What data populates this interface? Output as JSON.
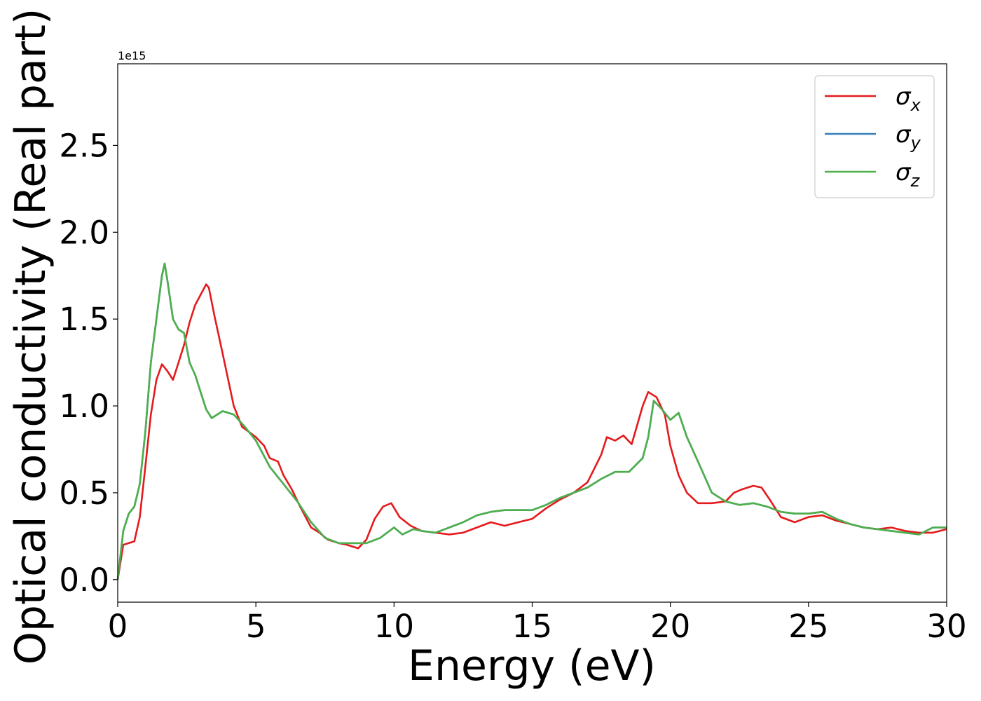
{
  "chart_data": {
    "type": "line",
    "xlabel": "Energy (eV)",
    "ylabel": "Optical conductivity (Real part)",
    "y_offset_label": "1e15",
    "xlim": [
      0,
      30
    ],
    "ylim": [
      -0.13,
      2.97
    ],
    "y_scale": 1000000000000000.0,
    "xticks": [
      0,
      5,
      10,
      15,
      20,
      25,
      30
    ],
    "xtick_labels": [
      "0",
      "5",
      "10",
      "15",
      "20",
      "25",
      "30"
    ],
    "yticks": [
      0.0,
      0.5,
      1.0,
      1.5,
      2.0,
      2.5
    ],
    "ytick_labels": [
      "0.0",
      "0.5",
      "1.0",
      "1.5",
      "2.0",
      "2.5"
    ],
    "grid": false,
    "legend_position": "top-right",
    "series": [
      {
        "name": "σx",
        "sub": "x",
        "color": "#e41a1c",
        "x": [
          0,
          0.2,
          0.4,
          0.6,
          0.8,
          1.0,
          1.2,
          1.4,
          1.6,
          1.8,
          2.0,
          2.2,
          2.4,
          2.6,
          2.8,
          3.0,
          3.2,
          3.3,
          3.5,
          3.8,
          4.0,
          4.2,
          4.5,
          5.0,
          5.3,
          5.5,
          5.8,
          6.0,
          6.3,
          6.6,
          7.0,
          7.3,
          7.6,
          8.0,
          8.3,
          8.7,
          9.0,
          9.3,
          9.6,
          9.9,
          10.2,
          10.6,
          11.0,
          11.5,
          12.0,
          12.5,
          13.0,
          13.5,
          14.0,
          14.5,
          15.0,
          15.5,
          16.0,
          16.5,
          17.0,
          17.5,
          17.7,
          18.0,
          18.3,
          18.6,
          19.0,
          19.2,
          19.5,
          19.8,
          20.0,
          20.3,
          20.6,
          21.0,
          21.5,
          22.0,
          22.3,
          22.6,
          23.0,
          23.3,
          23.6,
          24.0,
          24.5,
          25.0,
          25.5,
          26.0,
          26.5,
          27.0,
          27.5,
          28.0,
          28.5,
          29.0,
          29.5,
          30.0
        ],
        "y": [
          0.0,
          0.2,
          0.21,
          0.22,
          0.36,
          0.65,
          0.95,
          1.15,
          1.24,
          1.2,
          1.15,
          1.25,
          1.35,
          1.48,
          1.58,
          1.64,
          1.7,
          1.68,
          1.52,
          1.3,
          1.15,
          1.0,
          0.88,
          0.82,
          0.77,
          0.7,
          0.68,
          0.6,
          0.52,
          0.42,
          0.3,
          0.27,
          0.23,
          0.21,
          0.2,
          0.18,
          0.23,
          0.35,
          0.42,
          0.44,
          0.36,
          0.31,
          0.28,
          0.27,
          0.26,
          0.27,
          0.3,
          0.33,
          0.31,
          0.33,
          0.35,
          0.41,
          0.46,
          0.5,
          0.56,
          0.72,
          0.82,
          0.8,
          0.83,
          0.78,
          1.0,
          1.08,
          1.05,
          0.95,
          0.77,
          0.6,
          0.5,
          0.44,
          0.44,
          0.45,
          0.5,
          0.52,
          0.54,
          0.53,
          0.46,
          0.36,
          0.33,
          0.36,
          0.37,
          0.34,
          0.32,
          0.3,
          0.29,
          0.3,
          0.28,
          0.27,
          0.27,
          0.29
        ]
      },
      {
        "name": "σy",
        "sub": "y",
        "color": "#377eb8",
        "x": [
          0,
          0.2,
          0.4,
          0.6,
          0.8,
          1.0,
          1.2,
          1.4,
          1.6,
          1.7,
          1.8,
          2.0,
          2.2,
          2.4,
          2.6,
          2.8,
          3.0,
          3.2,
          3.4,
          3.6,
          3.8,
          4.2,
          4.6,
          5.0,
          5.5,
          6.0,
          6.5,
          7.0,
          7.5,
          8.0,
          8.5,
          9.0,
          9.5,
          10.0,
          10.3,
          10.7,
          11.0,
          11.5,
          12.0,
          12.5,
          13.0,
          13.5,
          14.0,
          14.5,
          15.0,
          15.5,
          16.0,
          16.5,
          17.0,
          17.5,
          18.0,
          18.5,
          19.0,
          19.2,
          19.4,
          19.7,
          20.0,
          20.3,
          20.6,
          21.0,
          21.5,
          22.0,
          22.5,
          23.0,
          23.5,
          24.0,
          24.5,
          25.0,
          25.5,
          26.0,
          26.5,
          27.0,
          27.5,
          28.0,
          28.5,
          29.0,
          29.5,
          30.0
        ],
        "y": [
          0.0,
          0.28,
          0.38,
          0.42,
          0.55,
          0.85,
          1.25,
          1.5,
          1.75,
          1.82,
          1.72,
          1.5,
          1.44,
          1.42,
          1.25,
          1.18,
          1.08,
          0.98,
          0.93,
          0.95,
          0.97,
          0.95,
          0.88,
          0.8,
          0.65,
          0.55,
          0.45,
          0.33,
          0.24,
          0.21,
          0.21,
          0.21,
          0.24,
          0.3,
          0.26,
          0.29,
          0.28,
          0.27,
          0.3,
          0.33,
          0.37,
          0.39,
          0.4,
          0.4,
          0.4,
          0.43,
          0.47,
          0.5,
          0.53,
          0.58,
          0.62,
          0.62,
          0.7,
          0.82,
          1.03,
          0.98,
          0.92,
          0.96,
          0.82,
          0.68,
          0.5,
          0.45,
          0.43,
          0.44,
          0.42,
          0.39,
          0.38,
          0.38,
          0.39,
          0.35,
          0.32,
          0.3,
          0.29,
          0.28,
          0.27,
          0.26,
          0.3,
          0.3
        ]
      },
      {
        "name": "σz",
        "sub": "z",
        "color": "#4daf4a",
        "x": [
          0,
          0.2,
          0.4,
          0.6,
          0.8,
          1.0,
          1.2,
          1.4,
          1.6,
          1.7,
          1.8,
          2.0,
          2.2,
          2.4,
          2.6,
          2.8,
          3.0,
          3.2,
          3.4,
          3.6,
          3.8,
          4.2,
          4.6,
          5.0,
          5.5,
          6.0,
          6.5,
          7.0,
          7.5,
          8.0,
          8.5,
          9.0,
          9.5,
          10.0,
          10.3,
          10.7,
          11.0,
          11.5,
          12.0,
          12.5,
          13.0,
          13.5,
          14.0,
          14.5,
          15.0,
          15.5,
          16.0,
          16.5,
          17.0,
          17.5,
          18.0,
          18.5,
          19.0,
          19.2,
          19.4,
          19.7,
          20.0,
          20.3,
          20.6,
          21.0,
          21.5,
          22.0,
          22.5,
          23.0,
          23.5,
          24.0,
          24.5,
          25.0,
          25.5,
          26.0,
          26.5,
          27.0,
          27.5,
          28.0,
          28.5,
          29.0,
          29.5,
          30.0
        ],
        "y": [
          0.0,
          0.28,
          0.38,
          0.42,
          0.55,
          0.85,
          1.25,
          1.5,
          1.75,
          1.82,
          1.72,
          1.5,
          1.44,
          1.42,
          1.25,
          1.18,
          1.08,
          0.98,
          0.93,
          0.95,
          0.97,
          0.95,
          0.88,
          0.8,
          0.65,
          0.55,
          0.45,
          0.33,
          0.24,
          0.21,
          0.21,
          0.21,
          0.24,
          0.3,
          0.26,
          0.29,
          0.28,
          0.27,
          0.3,
          0.33,
          0.37,
          0.39,
          0.4,
          0.4,
          0.4,
          0.43,
          0.47,
          0.5,
          0.53,
          0.58,
          0.62,
          0.62,
          0.7,
          0.82,
          1.03,
          0.98,
          0.92,
          0.96,
          0.82,
          0.68,
          0.5,
          0.45,
          0.43,
          0.44,
          0.42,
          0.39,
          0.38,
          0.38,
          0.39,
          0.35,
          0.32,
          0.3,
          0.29,
          0.28,
          0.27,
          0.26,
          0.3,
          0.3
        ]
      }
    ]
  }
}
